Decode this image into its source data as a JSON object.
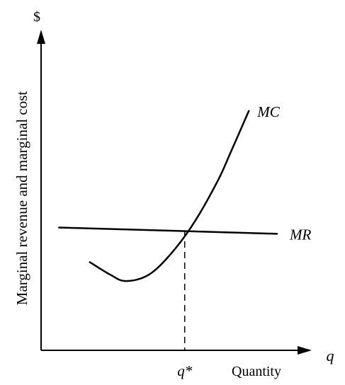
{
  "chart_data": {
    "type": "line",
    "y_axis_symbol": "$",
    "ylabel": "Marginal revenue and marginal cost",
    "x_axis_symbol": "q",
    "xlabel": "Quantity",
    "q_star_label": "q*",
    "x_range": [
      0,
      10
    ],
    "y_range": [
      0,
      10
    ],
    "grid": false,
    "series": [
      {
        "name": "MC",
        "points": [
          [
            1.9,
            2.8
          ],
          [
            2.7,
            2.4
          ],
          [
            3.3,
            2.2
          ],
          [
            4.2,
            2.4
          ],
          [
            5.1,
            3.1
          ],
          [
            6.0,
            4.1
          ],
          [
            6.9,
            5.4
          ],
          [
            7.4,
            6.3
          ],
          [
            8.1,
            7.6
          ]
        ]
      },
      {
        "name": "MR",
        "points": [
          [
            0.7,
            3.9
          ],
          [
            9.2,
            3.7
          ]
        ]
      }
    ],
    "intersection": {
      "label": "q*",
      "x": 5.6,
      "y": 3.8
    }
  }
}
